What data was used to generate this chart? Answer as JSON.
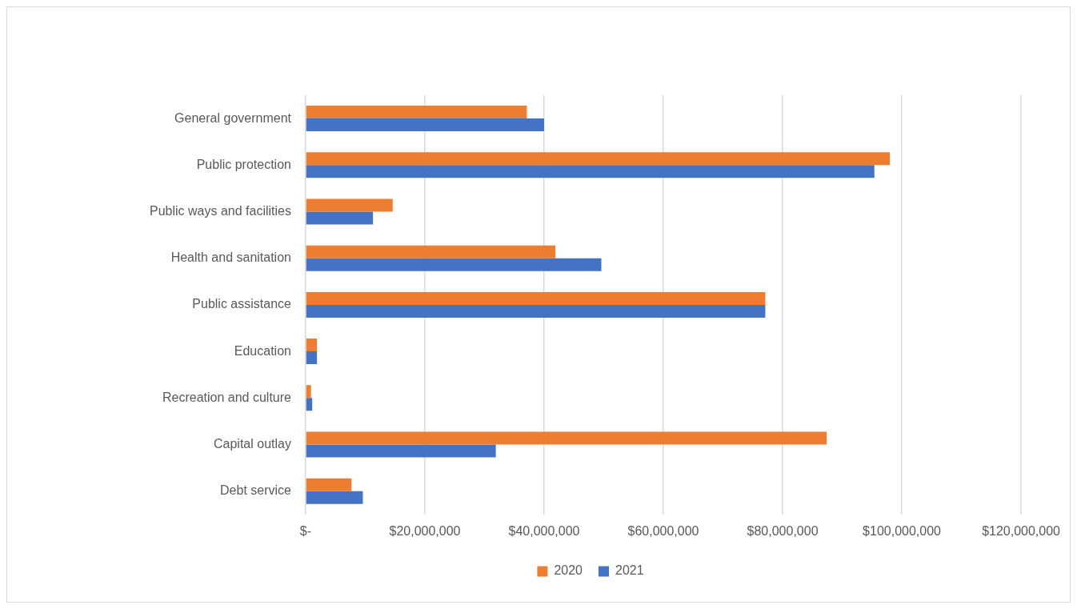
{
  "chart_data": {
    "type": "bar",
    "orientation": "horizontal",
    "categories": [
      "General government",
      "Public protection",
      "Public ways and facilities",
      "Health and sanitation",
      "Public assistance",
      "Education",
      "Recreation and culture",
      "Capital outlay",
      "Debt service"
    ],
    "series": [
      {
        "name": "2020",
        "color": "#ed7d31",
        "values": [
          37100000,
          98000000,
          14600000,
          41900000,
          77100000,
          1900000,
          900000,
          87400000,
          7700000
        ]
      },
      {
        "name": "2021",
        "color": "#4472c4",
        "values": [
          40000000,
          95400000,
          11300000,
          49600000,
          77100000,
          1900000,
          1100000,
          31900000,
          9600000
        ]
      }
    ],
    "xlim": [
      0,
      120000000
    ],
    "xticks": [
      {
        "value": 0,
        "label": "$-"
      },
      {
        "value": 20000000,
        "label": "$20,000,000"
      },
      {
        "value": 40000000,
        "label": "$40,000,000"
      },
      {
        "value": 60000000,
        "label": "$60,000,000"
      },
      {
        "value": 80000000,
        "label": "$80,000,000"
      },
      {
        "value": 100000000,
        "label": "$100,000,000"
      },
      {
        "value": 120000000,
        "label": "$120,000,000"
      }
    ],
    "grid": "x",
    "legend": "bottom"
  }
}
